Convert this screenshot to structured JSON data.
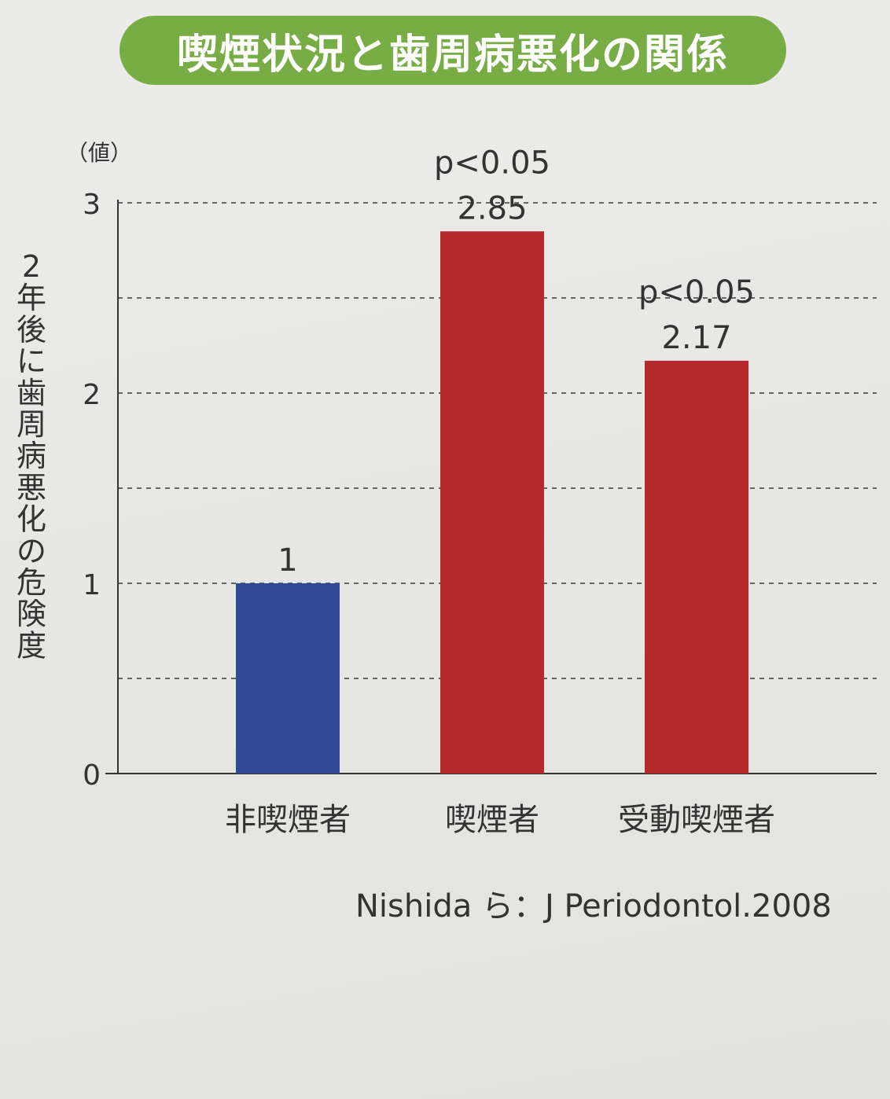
{
  "header": {
    "title": "喫煙状況と歯周病悪化の関係"
  },
  "chart_data": {
    "type": "bar",
    "title": "喫煙状況と歯周病悪化の関係",
    "ylabel": "2年後に歯周病悪化の危険度",
    "yunit": "（値）",
    "xlabel": "",
    "ylim": [
      0,
      3
    ],
    "yticks": [
      0,
      1,
      2,
      3
    ],
    "grid": "dashed horizontal at 0.5 intervals",
    "categories": [
      "非喫煙者",
      "喫煙者",
      "受動喫煙者"
    ],
    "values": [
      1,
      2.85,
      2.17
    ],
    "value_labels": [
      "1",
      "2.85",
      "2.17"
    ],
    "annotations": [
      "",
      "p<0.05",
      "p<0.05"
    ],
    "colors": [
      "#2e4a94",
      "#b5282b",
      "#b5282b"
    ]
  },
  "source": "Nishida ら：J Periodontol.2008"
}
